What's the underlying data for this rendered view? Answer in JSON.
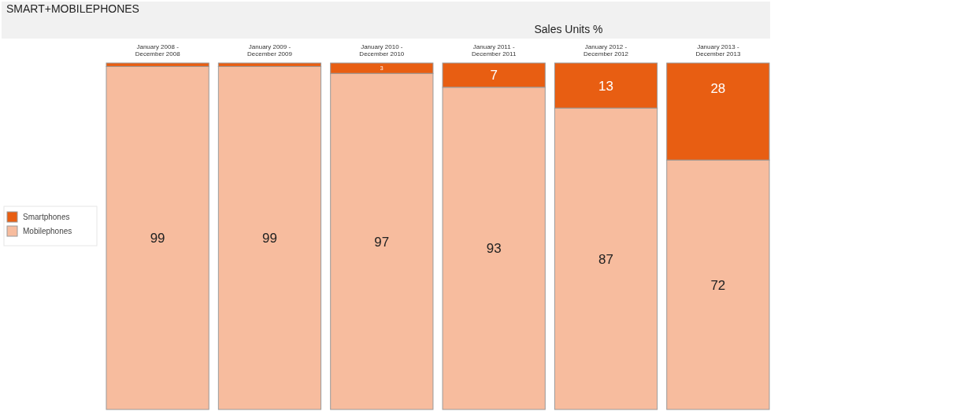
{
  "chart_data": {
    "type": "bar",
    "title": "SMART+MOBILEPHONES",
    "subtitle": "Sales Units %",
    "categories": [
      "January 2008 - December 2008",
      "January 2009 - December 2009",
      "January 2010 - December 2010",
      "January 2011 - December 2011",
      "January 2012 - December 2012",
      "January 2013 - December 2013"
    ],
    "stacked": true,
    "ylim": [
      0,
      100
    ],
    "tick_labels": "x",
    "grid": false,
    "legend": "left",
    "series": [
      {
        "name": "Mobilephones",
        "color": "#f7bc9e",
        "values": [
          99,
          99,
          97,
          93,
          87,
          72
        ],
        "value_labels": [
          "99",
          "99",
          "97",
          "93",
          "87",
          "72"
        ]
      },
      {
        "name": "Smartphones",
        "color": "#e85e12",
        "values": [
          1,
          1,
          3,
          7,
          13,
          28
        ],
        "value_labels": [
          null,
          null,
          "3",
          "7",
          "13",
          "28"
        ]
      }
    ]
  }
}
